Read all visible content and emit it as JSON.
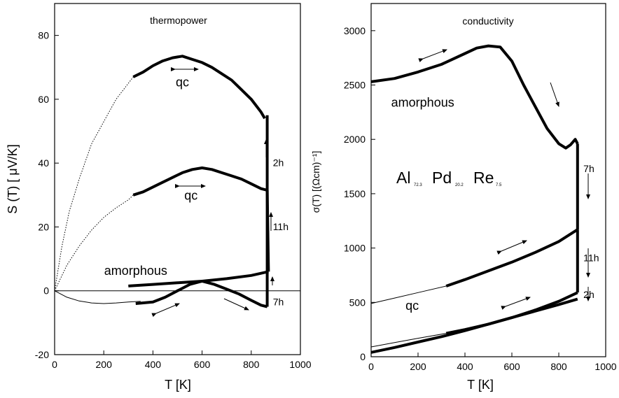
{
  "chart_data": [
    {
      "type": "line",
      "title": "thermopower",
      "xlabel": "T   [K]",
      "ylabel": "S (T)  [ μV/K]",
      "xlim": [
        0,
        1000
      ],
      "ylim": [
        -20,
        90
      ],
      "xticks": [
        "0",
        "200",
        "400",
        "600",
        "800",
        "1000"
      ],
      "yticks": [
        "-20",
        "0",
        "20",
        "40",
        "60",
        "80"
      ],
      "series": [
        {
          "style": "thick",
          "x": [
            320,
            360,
            400,
            440,
            480,
            520,
            560,
            600,
            640,
            680,
            720,
            760,
            800,
            840,
            855
          ],
          "y": [
            67,
            68.5,
            70.5,
            72,
            73,
            73.5,
            72.5,
            71.5,
            70,
            68,
            66,
            63,
            60,
            56,
            54
          ]
        },
        {
          "style": "dotted",
          "x": [
            0,
            30,
            60,
            100,
            150,
            200,
            250,
            300,
            320
          ],
          "y": [
            0,
            14,
            25,
            35,
            46,
            53,
            60,
            65,
            67
          ]
        },
        {
          "style": "thick",
          "x": [
            320,
            360,
            400,
            440,
            480,
            520,
            560,
            600,
            640,
            680,
            720,
            760,
            800,
            840,
            865
          ],
          "y": [
            30,
            31,
            32.5,
            34,
            35.5,
            37,
            38,
            38.5,
            38,
            37,
            36,
            35,
            33.5,
            32,
            31.5
          ]
        },
        {
          "style": "dotted",
          "x": [
            0,
            50,
            100,
            150,
            200,
            250,
            300,
            320
          ],
          "y": [
            0,
            8,
            14,
            19,
            23,
            26,
            28.5,
            30
          ]
        },
        {
          "style": "thick",
          "x": [
            300,
            400,
            500,
            600,
            700,
            800,
            870
          ],
          "y": [
            1.5,
            2,
            2.5,
            3,
            3.8,
            4.8,
            6
          ]
        },
        {
          "style": "thick",
          "x": [
            330,
            400,
            450,
            500,
            550,
            600,
            650,
            700,
            750,
            800,
            840,
            865
          ],
          "y": [
            -4,
            -3.5,
            -2,
            0,
            2,
            3,
            2,
            0.5,
            -1,
            -3,
            -4.5,
            -5
          ]
        },
        {
          "style": "thin",
          "x": [
            0,
            50,
            100,
            150,
            200,
            250,
            300,
            350
          ],
          "y": [
            0,
            -2,
            -3.2,
            -3.8,
            -4,
            -3.8,
            -3.5,
            -3.3
          ]
        },
        {
          "style": "thin",
          "x": [
            0,
            1000
          ],
          "y": [
            0,
            0
          ]
        },
        {
          "style": "thick",
          "x": [
            865,
            865
          ],
          "y": [
            55,
            -5
          ]
        },
        {
          "style": "thick",
          "x": [
            865,
            870
          ],
          "y": [
            31.5,
            6
          ]
        }
      ],
      "annotations": [
        {
          "text": "qc",
          "x": 520,
          "y": 64
        },
        {
          "text": "qc",
          "x": 555,
          "y": 28.5
        },
        {
          "text": "amorphous",
          "x": 330,
          "y": 5
        },
        {
          "text": "2h",
          "x": 888,
          "y": 39
        },
        {
          "text": "11h",
          "x": 888,
          "y": 19
        },
        {
          "text": "7h",
          "x": 888,
          "y": -4.5
        }
      ]
    },
    {
      "type": "line",
      "title": "conductivity",
      "xlabel": "T  [K]",
      "ylabel": "σ(T)  [(Ωcm)⁻¹]",
      "xlim": [
        0,
        1000
      ],
      "ylim": [
        0,
        3250
      ],
      "xticks": [
        "0",
        "200",
        "400",
        "600",
        "800",
        "1000"
      ],
      "yticks": [
        "0",
        "500",
        "1000",
        "1500",
        "2000",
        "2500",
        "3000"
      ],
      "formula": {
        "main": [
          "Al",
          "Pd",
          "Re"
        ],
        "subs": [
          "72.3",
          "20.2",
          "7.5"
        ]
      },
      "series": [
        {
          "style": "thick",
          "x": [
            0,
            100,
            200,
            300,
            400,
            450,
            500,
            550,
            600,
            650,
            700,
            750,
            800,
            830,
            850,
            870,
            880
          ],
          "y": [
            2530,
            2560,
            2620,
            2690,
            2790,
            2840,
            2860,
            2850,
            2720,
            2500,
            2300,
            2100,
            1960,
            1920,
            1950,
            2000,
            1960
          ]
        },
        {
          "style": "thick",
          "x": [
            880,
            880
          ],
          "y": [
            1960,
            1170
          ]
        },
        {
          "style": "thick",
          "x": [
            320,
            400,
            500,
            600,
            700,
            800,
            880
          ],
          "y": [
            650,
            710,
            790,
            870,
            960,
            1060,
            1170
          ]
        },
        {
          "style": "thin",
          "x": [
            0,
            100,
            200,
            320
          ],
          "y": [
            490,
            540,
            590,
            650
          ]
        },
        {
          "style": "thick",
          "x": [
            880,
            880
          ],
          "y": [
            1170,
            590
          ]
        },
        {
          "style": "thick",
          "x": [
            320,
            400,
            500,
            600,
            700,
            800,
            880
          ],
          "y": [
            215,
            250,
            300,
            360,
            430,
            510,
            590
          ]
        },
        {
          "style": "thin",
          "x": [
            0,
            100,
            200,
            320
          ],
          "y": [
            90,
            130,
            170,
            215
          ]
        },
        {
          "style": "thick",
          "x": [
            0,
            100,
            200,
            300,
            400,
            500,
            600,
            700,
            800,
            880
          ],
          "y": [
            40,
            85,
            135,
            185,
            240,
            300,
            360,
            420,
            480,
            530
          ]
        }
      ],
      "annotations": [
        {
          "text": "amorphous",
          "x": 220,
          "y": 2300
        },
        {
          "text": "7h",
          "x": 905,
          "y": 1700
        },
        {
          "text": "11h",
          "x": 905,
          "y": 880
        },
        {
          "text": "qc",
          "x": 175,
          "y": 430
        },
        {
          "text": "2h",
          "x": 905,
          "y": 540
        }
      ]
    }
  ]
}
